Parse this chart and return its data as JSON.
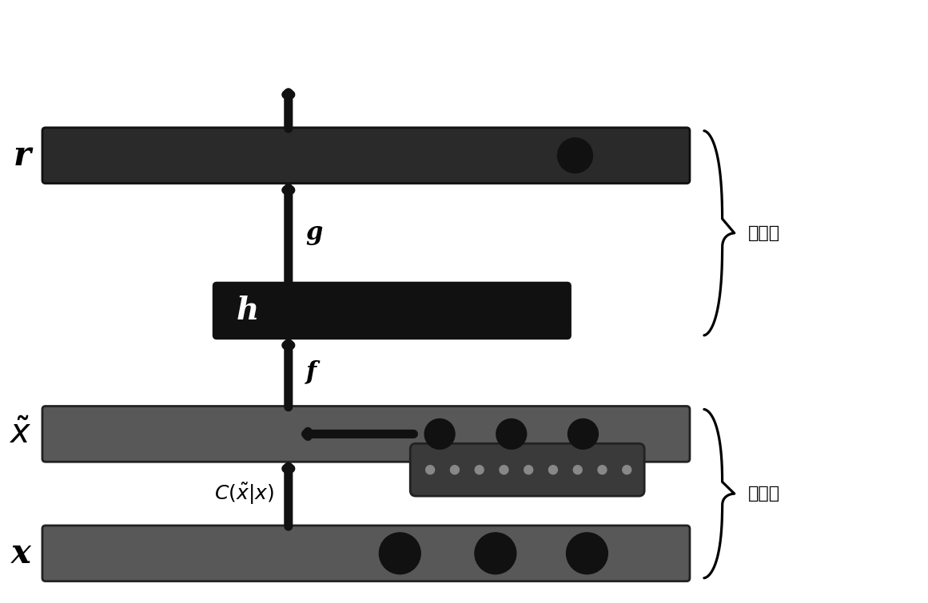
{
  "bg_color": "#ffffff",
  "bar_gray": "#585858",
  "bar_dark": "#111111",
  "bar_mid": "#2a2a2a",
  "circle_dark": "#111111",
  "small_box_color": "#3a3a3a",
  "arrow_color": "#111111",
  "label_r": "r",
  "label_h": "h",
  "label_x_tilde": "$\\tilde{x}$",
  "label_x": "x",
  "label_g": "g",
  "label_f": "f",
  "label_c": "$C(\\tilde{x}|x)$",
  "label_decoder": "解码器",
  "label_encoder": "编码器",
  "font_size_label": 28,
  "font_size_arrow_label": 22,
  "font_size_side": 16
}
